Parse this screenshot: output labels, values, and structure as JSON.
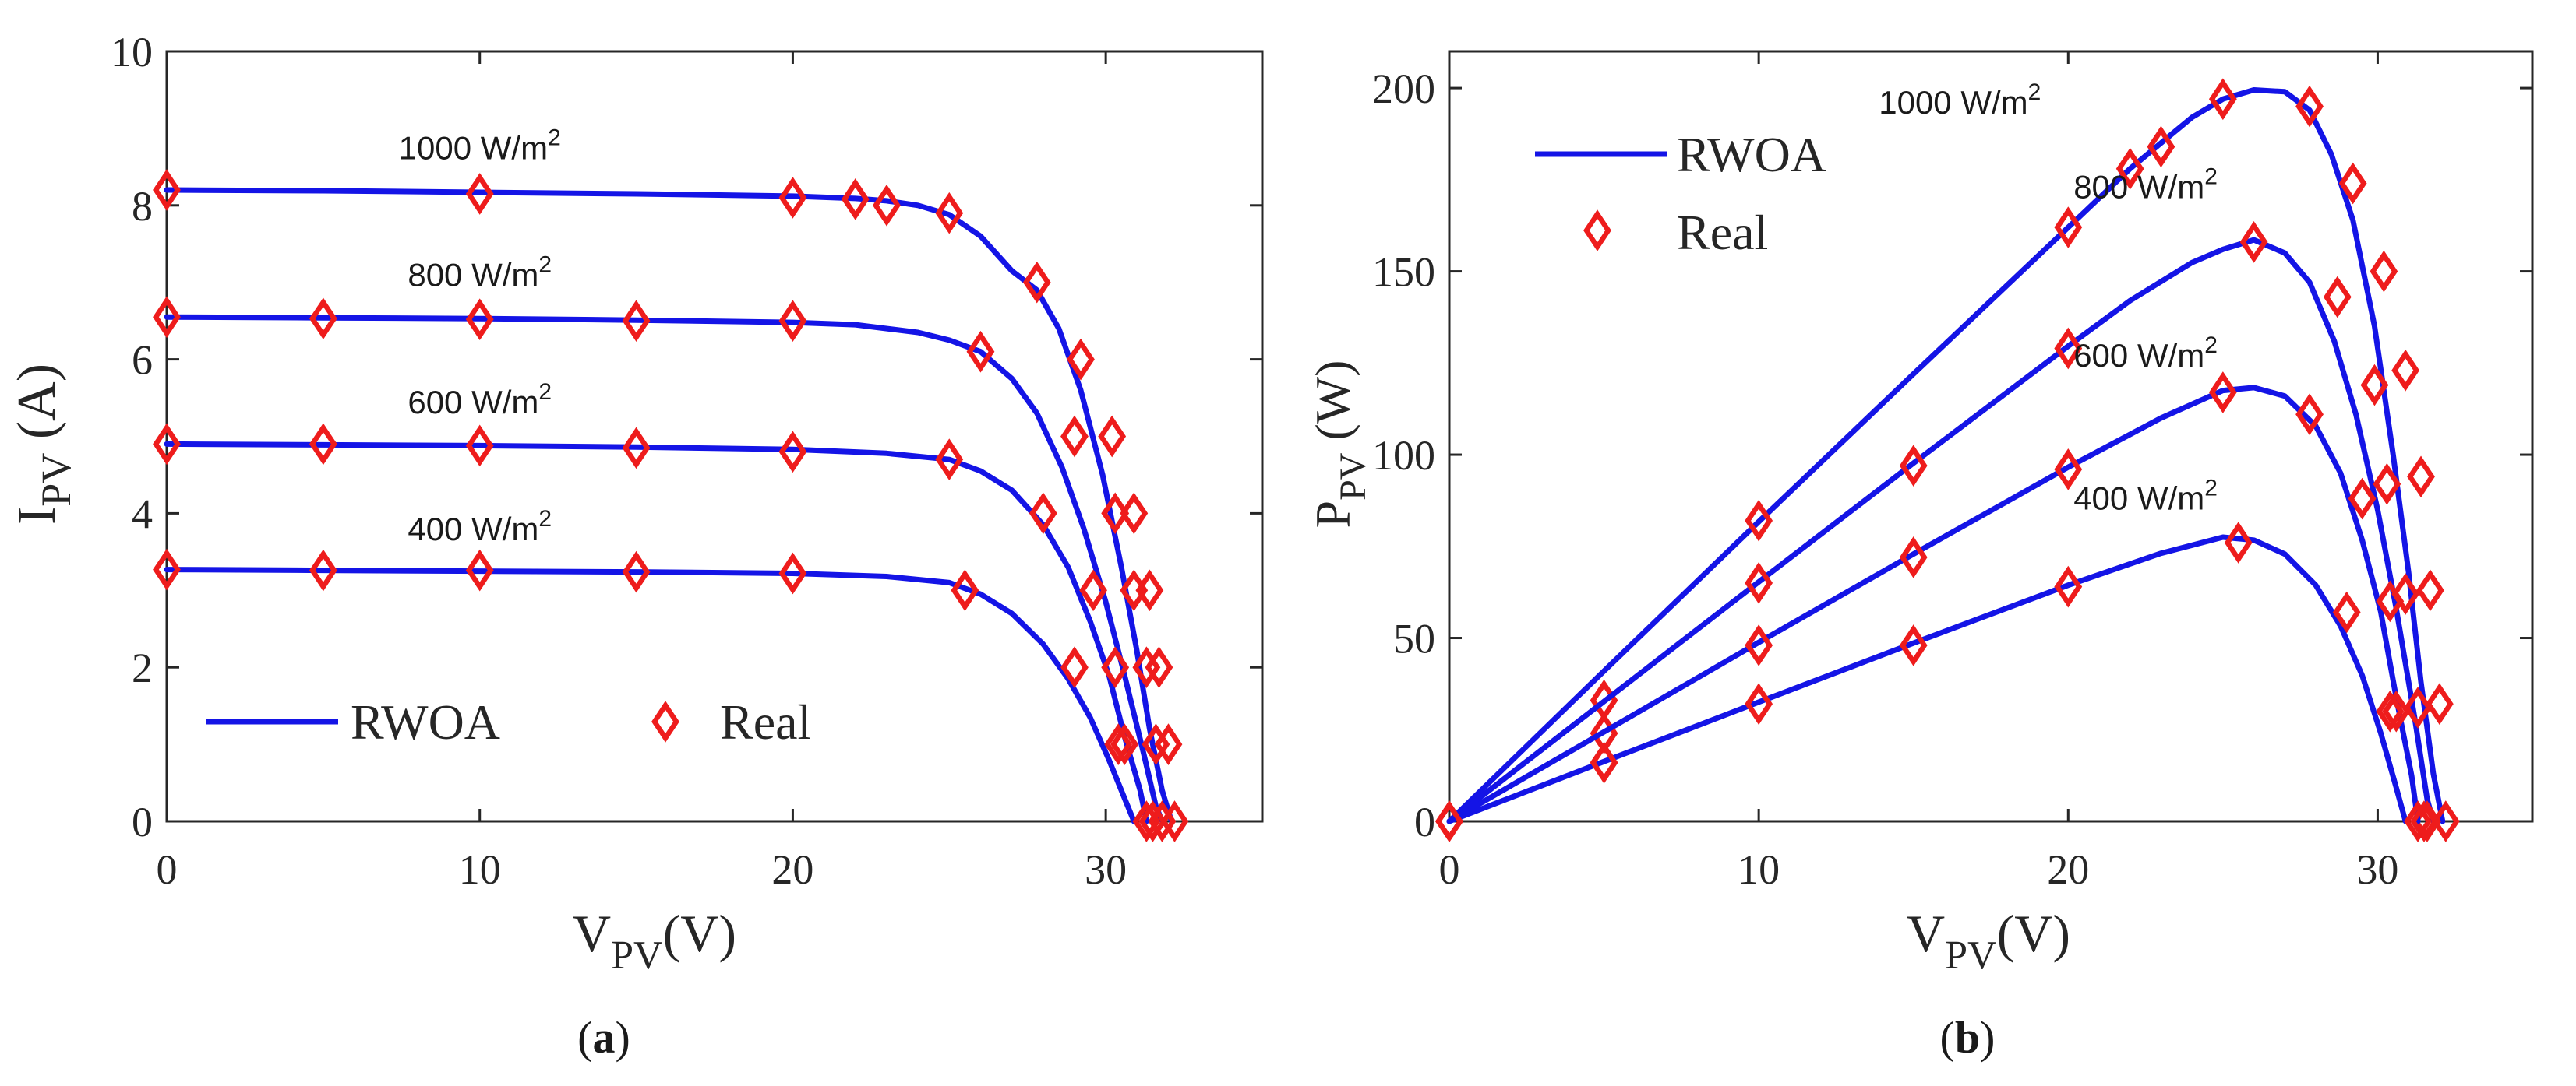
{
  "chart_data": [
    {
      "panel": "(a)",
      "panel_letter": "a",
      "type": "line",
      "ylabel_main": "I",
      "ylabel_sub": "PV",
      "ylabel_unit": "(A)",
      "xlabel_main": "V",
      "xlabel_sub": "PV",
      "xlabel_unit": "(V)",
      "xlim": [
        0,
        35
      ],
      "ylim": [
        0,
        10
      ],
      "xticks": [
        0,
        10,
        20,
        30
      ],
      "yticks": [
        0,
        2,
        4,
        6,
        8,
        10
      ],
      "legend": {
        "position": "bottom-left",
        "orientation": "horizontal",
        "line_label": "RWOA",
        "marker_label": "Real"
      },
      "series": [
        {
          "name": "1000 W/m2",
          "label_main": "1000 W/m",
          "label_exp": "2",
          "label_at": [
            10,
            8.6
          ],
          "curve": [
            [
              0,
              8.2
            ],
            [
              5,
              8.19
            ],
            [
              10,
              8.17
            ],
            [
              15,
              8.15
            ],
            [
              20,
              8.12
            ],
            [
              22,
              8.09
            ],
            [
              23,
              8.06
            ],
            [
              24,
              8.0
            ],
            [
              25,
              7.88
            ],
            [
              26,
              7.6
            ],
            [
              27,
              7.15
            ],
            [
              27.8,
              6.9
            ],
            [
              28.5,
              6.4
            ],
            [
              29.2,
              5.6
            ],
            [
              29.9,
              4.5
            ],
            [
              30.5,
              3.3
            ],
            [
              31,
              2.2
            ],
            [
              31.4,
              1.2
            ],
            [
              31.8,
              0.4
            ],
            [
              32.1,
              0
            ]
          ],
          "real": [
            [
              0,
              8.2
            ],
            [
              10,
              8.15
            ],
            [
              20,
              8.1
            ],
            [
              22,
              8.08
            ],
            [
              23,
              8.0
            ],
            [
              25,
              7.9
            ],
            [
              27.8,
              7.0
            ],
            [
              29.2,
              6.0
            ],
            [
              30.2,
              5.0
            ],
            [
              30.9,
              4.0
            ],
            [
              31.4,
              3.0
            ],
            [
              31.7,
              2.0
            ],
            [
              32.0,
              1.0
            ],
            [
              32.2,
              0
            ]
          ]
        },
        {
          "name": "800 W/m2",
          "label_main": "800 W/m",
          "label_exp": "2",
          "label_at": [
            10,
            6.95
          ],
          "curve": [
            [
              0,
              6.55
            ],
            [
              5,
              6.54
            ],
            [
              10,
              6.53
            ],
            [
              15,
              6.51
            ],
            [
              20,
              6.48
            ],
            [
              22,
              6.45
            ],
            [
              24,
              6.35
            ],
            [
              25,
              6.25
            ],
            [
              26,
              6.1
            ],
            [
              27,
              5.75
            ],
            [
              27.8,
              5.3
            ],
            [
              28.6,
              4.6
            ],
            [
              29.3,
              3.8
            ],
            [
              30,
              2.85
            ],
            [
              30.6,
              1.9
            ],
            [
              31.2,
              0.9
            ],
            [
              31.6,
              0.2
            ],
            [
              31.8,
              0
            ]
          ],
          "real": [
            [
              0,
              6.55
            ],
            [
              5,
              6.53
            ],
            [
              10,
              6.52
            ],
            [
              15,
              6.5
            ],
            [
              20,
              6.5
            ],
            [
              26,
              6.1
            ],
            [
              29,
              5.0
            ],
            [
              30.3,
              4.0
            ],
            [
              30.9,
              3.0
            ],
            [
              31.3,
              2.0
            ],
            [
              31.6,
              1.0
            ],
            [
              31.8,
              0
            ]
          ]
        },
        {
          "name": "600 W/m2",
          "label_main": "600 W/m",
          "label_exp": "2",
          "label_at": [
            10,
            5.3
          ],
          "curve": [
            [
              0,
              4.9
            ],
            [
              5,
              4.89
            ],
            [
              10,
              4.88
            ],
            [
              15,
              4.86
            ],
            [
              20,
              4.83
            ],
            [
              23,
              4.78
            ],
            [
              25,
              4.7
            ],
            [
              26,
              4.55
            ],
            [
              27,
              4.3
            ],
            [
              28,
              3.85
            ],
            [
              28.8,
              3.3
            ],
            [
              29.5,
              2.6
            ],
            [
              30.1,
              1.9
            ],
            [
              30.6,
              1.1
            ],
            [
              31.1,
              0.4
            ],
            [
              31.3,
              0
            ]
          ],
          "real": [
            [
              0,
              4.9
            ],
            [
              5,
              4.9
            ],
            [
              10,
              4.88
            ],
            [
              15,
              4.85
            ],
            [
              20,
              4.8
            ],
            [
              25,
              4.7
            ],
            [
              28,
              4.0
            ],
            [
              29.6,
              3.0
            ],
            [
              30.3,
              2.0
            ],
            [
              30.6,
              1.0
            ],
            [
              31.5,
              0
            ]
          ]
        },
        {
          "name": "400 W/m2",
          "label_main": "400 W/m",
          "label_exp": "2",
          "label_at": [
            10,
            3.65
          ],
          "curve": [
            [
              0,
              3.27
            ],
            [
              5,
              3.26
            ],
            [
              10,
              3.25
            ],
            [
              15,
              3.24
            ],
            [
              20,
              3.22
            ],
            [
              23,
              3.18
            ],
            [
              25,
              3.1
            ],
            [
              26,
              2.95
            ],
            [
              27,
              2.7
            ],
            [
              28,
              2.3
            ],
            [
              28.8,
              1.85
            ],
            [
              29.5,
              1.35
            ],
            [
              30.1,
              0.8
            ],
            [
              30.6,
              0.3
            ],
            [
              30.9,
              0
            ]
          ],
          "real": [
            [
              0,
              3.27
            ],
            [
              5,
              3.26
            ],
            [
              10,
              3.26
            ],
            [
              15,
              3.24
            ],
            [
              20,
              3.22
            ],
            [
              25.5,
              3.0
            ],
            [
              29.0,
              2.0
            ],
            [
              30.4,
              1.0
            ],
            [
              31.3,
              0
            ]
          ]
        }
      ]
    },
    {
      "panel": "(b)",
      "panel_letter": "b",
      "type": "line",
      "ylabel_main": "P",
      "ylabel_sub": "PV",
      "ylabel_unit": "(W)",
      "xlabel_main": "V",
      "xlabel_sub": "PV",
      "xlabel_unit": "(V)",
      "xlim": [
        0,
        35
      ],
      "ylim": [
        0,
        210
      ],
      "xticks": [
        0,
        10,
        20,
        30
      ],
      "yticks": [
        0,
        50,
        100,
        150,
        200
      ],
      "legend": {
        "position": "top-left",
        "orientation": "vertical",
        "line_label": "RWOA",
        "marker_label": "Real"
      },
      "series": [
        {
          "name": "1000 W/m2",
          "label_main": "1000 W/m",
          "label_exp": "2",
          "label_at": [
            16.5,
            193
          ],
          "curve": [
            [
              0,
              0
            ],
            [
              5,
              41
            ],
            [
              10,
              81.7
            ],
            [
              15,
              122
            ],
            [
              20,
              162
            ],
            [
              22,
              178
            ],
            [
              24,
              192
            ],
            [
              25,
              197
            ],
            [
              26,
              199.5
            ],
            [
              27,
              199
            ],
            [
              27.8,
              194
            ],
            [
              28.5,
              182
            ],
            [
              29.2,
              164
            ],
            [
              29.9,
              135
            ],
            [
              30.5,
              100
            ],
            [
              31,
              68
            ],
            [
              31.4,
              38
            ],
            [
              31.8,
              13
            ],
            [
              32.1,
              0
            ]
          ],
          "real": [
            [
              0,
              0
            ],
            [
              5,
              33
            ],
            [
              10,
              82
            ],
            [
              20,
              162
            ],
            [
              22,
              178
            ],
            [
              23,
              184
            ],
            [
              25,
              197
            ],
            [
              27.8,
              195
            ],
            [
              29.2,
              174
            ],
            [
              30.2,
              150
            ],
            [
              30.9,
              123
            ],
            [
              31.4,
              94
            ],
            [
              31.7,
              63
            ],
            [
              32.0,
              32
            ],
            [
              32.2,
              0
            ]
          ]
        },
        {
          "name": "800 W/m2",
          "label_main": "800 W/m",
          "label_exp": "2",
          "label_at": [
            22.5,
            170
          ],
          "curve": [
            [
              0,
              0
            ],
            [
              5,
              32.7
            ],
            [
              10,
              65.3
            ],
            [
              15,
              97.7
            ],
            [
              20,
              129.6
            ],
            [
              22,
              142
            ],
            [
              24,
              152.4
            ],
            [
              25,
              156
            ],
            [
              26,
              158.6
            ],
            [
              27,
              155
            ],
            [
              27.8,
              147
            ],
            [
              28.6,
              131
            ],
            [
              29.3,
              111
            ],
            [
              30,
              85
            ],
            [
              30.6,
              58
            ],
            [
              31.2,
              28
            ],
            [
              31.6,
              6
            ],
            [
              31.8,
              0
            ]
          ],
          "real": [
            [
              0,
              0
            ],
            [
              5,
              24
            ],
            [
              10,
              65
            ],
            [
              15,
              97
            ],
            [
              20,
              129
            ],
            [
              26,
              158
            ],
            [
              28.7,
              143
            ],
            [
              29.9,
              119
            ],
            [
              30.3,
              92
            ],
            [
              30.9,
              62
            ],
            [
              31.3,
              31
            ],
            [
              31.6,
              0
            ]
          ]
        },
        {
          "name": "600 W/m2",
          "label_main": "600 W/m",
          "label_exp": "2",
          "label_at": [
            22.5,
            124
          ],
          "curve": [
            [
              0,
              0
            ],
            [
              5,
              24.4
            ],
            [
              10,
              48.8
            ],
            [
              15,
              72.9
            ],
            [
              20,
              96.6
            ],
            [
              23,
              110
            ],
            [
              25,
              117.5
            ],
            [
              26,
              118.3
            ],
            [
              27,
              116
            ],
            [
              28,
              107.8
            ],
            [
              28.8,
              95
            ],
            [
              29.5,
              76.7
            ],
            [
              30.1,
              57.2
            ],
            [
              30.6,
              33.7
            ],
            [
              31.1,
              12.4
            ],
            [
              31.3,
              0
            ]
          ],
          "real": [
            [
              0,
              0
            ],
            [
              5,
              16
            ],
            [
              10,
              48
            ],
            [
              15,
              72
            ],
            [
              20,
              96
            ],
            [
              25,
              117
            ],
            [
              27.8,
              111
            ],
            [
              29.5,
              88
            ],
            [
              30.4,
              60
            ],
            [
              30.6,
              30
            ],
            [
              31.5,
              0
            ]
          ]
        },
        {
          "name": "400 W/m2",
          "label_main": "400 W/m",
          "label_exp": "2",
          "label_at": [
            22.5,
            85
          ],
          "curve": [
            [
              0,
              0
            ],
            [
              5,
              16.3
            ],
            [
              10,
              32.5
            ],
            [
              15,
              48.6
            ],
            [
              20,
              64.4
            ],
            [
              23,
              73.1
            ],
            [
              25,
              77.5
            ],
            [
              26,
              76.7
            ],
            [
              27,
              72.9
            ],
            [
              28,
              64.4
            ],
            [
              28.8,
              53.3
            ],
            [
              29.5,
              39.8
            ],
            [
              30.1,
              24.1
            ],
            [
              30.6,
              9.2
            ],
            [
              30.9,
              0
            ]
          ],
          "real": [
            [
              0,
              0
            ],
            [
              5,
              16
            ],
            [
              10,
              32
            ],
            [
              15,
              48
            ],
            [
              20,
              64
            ],
            [
              25.5,
              76
            ],
            [
              29,
              57
            ],
            [
              30.4,
              30
            ],
            [
              31.3,
              0
            ]
          ]
        }
      ]
    }
  ]
}
